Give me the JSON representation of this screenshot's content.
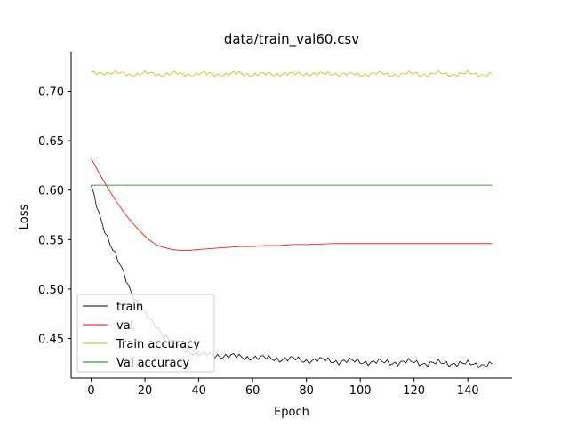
{
  "chart_data": {
    "type": "line",
    "title": "data/train_val60.csv",
    "xlabel": "Epoch",
    "ylabel": "Loss",
    "xlim": [
      -7.45,
      156.45
    ],
    "ylim": [
      0.41,
      0.74
    ],
    "xticks": [
      0,
      20,
      40,
      60,
      80,
      100,
      120,
      140
    ],
    "yticks": [
      0.45,
      0.5,
      0.55,
      0.6,
      0.65,
      0.7
    ],
    "ytick_labels": [
      "0.45",
      "0.50",
      "0.55",
      "0.60",
      "0.65",
      "0.70"
    ],
    "grid": false,
    "legend_position": "lower-left",
    "series": [
      {
        "name": "train",
        "color": "#000000",
        "points": [
          [
            0,
            0.603
          ],
          [
            2,
            0.585
          ],
          [
            4,
            0.568
          ],
          [
            6,
            0.553
          ],
          [
            8,
            0.54
          ],
          [
            10,
            0.528
          ],
          [
            12,
            0.516
          ],
          [
            14,
            0.503
          ],
          [
            16,
            0.492
          ],
          [
            18,
            0.483
          ],
          [
            20,
            0.475
          ],
          [
            22,
            0.468
          ],
          [
            24,
            0.463
          ],
          [
            26,
            0.457
          ],
          [
            28,
            0.452
          ],
          [
            30,
            0.447
          ],
          [
            32,
            0.443
          ],
          [
            34,
            0.44
          ],
          [
            36,
            0.437
          ],
          [
            38,
            0.436
          ],
          [
            40,
            0.434
          ],
          [
            44,
            0.433
          ],
          [
            48,
            0.433
          ],
          [
            52,
            0.432
          ],
          [
            56,
            0.431
          ],
          [
            60,
            0.431
          ],
          [
            64,
            0.43
          ],
          [
            68,
            0.43
          ],
          [
            72,
            0.429
          ],
          [
            76,
            0.429
          ],
          [
            80,
            0.428
          ],
          [
            84,
            0.428
          ],
          [
            88,
            0.428
          ],
          [
            92,
            0.427
          ],
          [
            96,
            0.427
          ],
          [
            100,
            0.427
          ],
          [
            104,
            0.426
          ],
          [
            108,
            0.426
          ],
          [
            112,
            0.426
          ],
          [
            116,
            0.426
          ],
          [
            120,
            0.426
          ],
          [
            124,
            0.425
          ],
          [
            128,
            0.425
          ],
          [
            132,
            0.425
          ],
          [
            136,
            0.425
          ],
          [
            140,
            0.424
          ],
          [
            144,
            0.424
          ],
          [
            149,
            0.424
          ]
        ]
      },
      {
        "name": "val",
        "color": "#ff0000",
        "points": [
          [
            0,
            0.632
          ],
          [
            3,
            0.617
          ],
          [
            6,
            0.603
          ],
          [
            9,
            0.59
          ],
          [
            12,
            0.578
          ],
          [
            15,
            0.568
          ],
          [
            18,
            0.559
          ],
          [
            21,
            0.551
          ],
          [
            24,
            0.545
          ],
          [
            27,
            0.542
          ],
          [
            30,
            0.54
          ],
          [
            33,
            0.539
          ],
          [
            36,
            0.539
          ],
          [
            40,
            0.54
          ],
          [
            45,
            0.541
          ],
          [
            50,
            0.542
          ],
          [
            55,
            0.543
          ],
          [
            60,
            0.543
          ],
          [
            65,
            0.544
          ],
          [
            70,
            0.544
          ],
          [
            75,
            0.545
          ],
          [
            80,
            0.545
          ],
          [
            90,
            0.546
          ],
          [
            100,
            0.546
          ],
          [
            110,
            0.546
          ],
          [
            120,
            0.546
          ],
          [
            130,
            0.546
          ],
          [
            140,
            0.546
          ],
          [
            149,
            0.546
          ]
        ]
      },
      {
        "name": "Train accuracy",
        "color": "#bfbf00",
        "points": [
          [
            0,
            0.718
          ],
          [
            5,
            0.719
          ],
          [
            10,
            0.718
          ],
          [
            15,
            0.717
          ],
          [
            20,
            0.718
          ],
          [
            25,
            0.717
          ],
          [
            30,
            0.718
          ],
          [
            35,
            0.717
          ],
          [
            40,
            0.718
          ],
          [
            45,
            0.717
          ],
          [
            50,
            0.717
          ],
          [
            55,
            0.718
          ],
          [
            60,
            0.717
          ],
          [
            65,
            0.717
          ],
          [
            70,
            0.718
          ],
          [
            75,
            0.717
          ],
          [
            80,
            0.718
          ],
          [
            85,
            0.717
          ],
          [
            90,
            0.718
          ],
          [
            95,
            0.717
          ],
          [
            100,
            0.717
          ],
          [
            105,
            0.718
          ],
          [
            110,
            0.717
          ],
          [
            115,
            0.717
          ],
          [
            120,
            0.718
          ],
          [
            125,
            0.717
          ],
          [
            130,
            0.718
          ],
          [
            135,
            0.717
          ],
          [
            140,
            0.718
          ],
          [
            145,
            0.717
          ],
          [
            149,
            0.717
          ]
        ]
      },
      {
        "name": "Val accuracy",
        "color": "#008000",
        "points": [
          [
            0,
            0.605
          ],
          [
            149,
            0.605
          ]
        ]
      }
    ]
  }
}
